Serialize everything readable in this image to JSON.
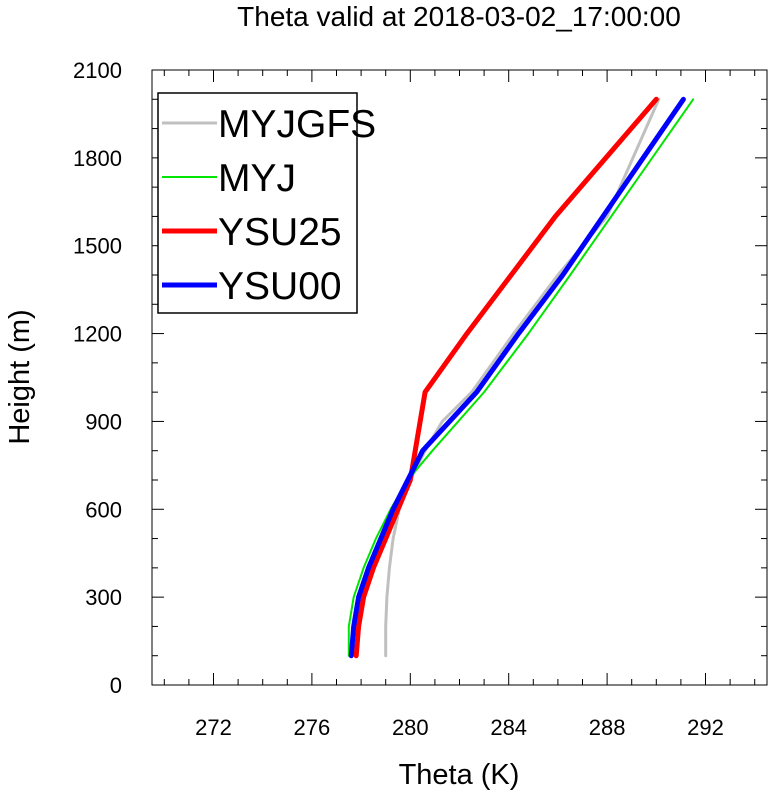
{
  "chart_data": {
    "type": "line",
    "title": "Theta valid at 2018-03-02_17:00:00",
    "xlabel": "Theta (K)",
    "ylabel": "Height (m)",
    "xlim": [
      269.5,
      294.5
    ],
    "ylim": [
      0,
      2100
    ],
    "xticks": [
      272,
      276,
      280,
      284,
      288,
      292
    ],
    "yticks": [
      0,
      300,
      600,
      900,
      1200,
      1500,
      1800,
      2100
    ],
    "grid": false,
    "legend_position": "top-left",
    "series": [
      {
        "name": "MYJGFS",
        "color": "#c0c0c0",
        "x": [
          279.0,
          279.0,
          279.05,
          279.15,
          279.3,
          279.55,
          280.0,
          280.6,
          281.3,
          282.5,
          284.2,
          286.0,
          288.0,
          290.1
        ],
        "y": [
          100,
          200,
          300,
          400,
          500,
          600,
          700,
          800,
          900,
          1000,
          1200,
          1400,
          1600,
          2000
        ]
      },
      {
        "name": "MYJ",
        "color": "#00e600",
        "x": [
          277.5,
          277.5,
          277.7,
          278.1,
          278.6,
          279.2,
          279.9,
          280.9,
          283.0,
          284.8,
          286.5,
          291.5
        ],
        "y": [
          100,
          200,
          300,
          400,
          500,
          600,
          700,
          800,
          1000,
          1200,
          1400,
          2000
        ]
      },
      {
        "name": "YSU25",
        "color": "#ff0000",
        "x": [
          277.8,
          277.9,
          278.1,
          278.5,
          279.0,
          279.5,
          280.0,
          280.6,
          282.3,
          284.1,
          285.9,
          290.0
        ],
        "y": [
          100,
          200,
          300,
          400,
          500,
          600,
          700,
          1000,
          1200,
          1400,
          1600,
          2000
        ]
      },
      {
        "name": "YSU00",
        "color": "#0000ff",
        "x": [
          277.6,
          277.7,
          277.9,
          278.3,
          278.8,
          279.3,
          279.9,
          280.5,
          282.7,
          284.4,
          286.2,
          291.1
        ],
        "y": [
          100,
          200,
          300,
          400,
          500,
          600,
          700,
          800,
          1000,
          1200,
          1400,
          2000
        ]
      }
    ]
  }
}
